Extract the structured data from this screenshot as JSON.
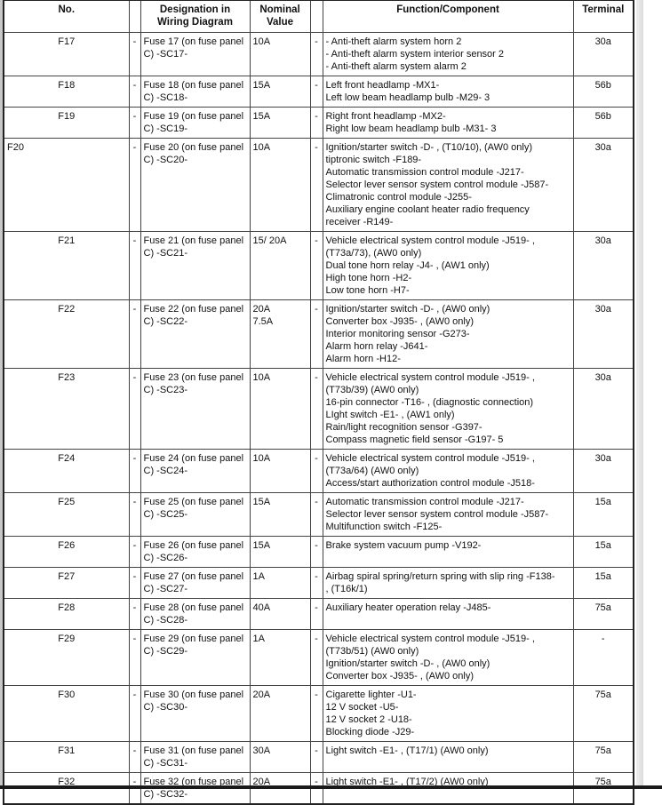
{
  "headers": {
    "no": "No.",
    "designation": "Designation in Wiring Diagram",
    "nominal": "Nominal Value",
    "function": "Function/Component",
    "terminal": "Terminal"
  },
  "dash": "-",
  "rows": [
    {
      "no": "F17",
      "designation": "Fuse 17 (on fuse panel C) -SC17-",
      "nominal": [
        "10A"
      ],
      "function": [
        "- Anti-theft alarm system horn 2",
        "- Anti-theft alarm system interior sensor 2",
        "- Anti-theft alarm system alarm 2"
      ],
      "terminal": "30a"
    },
    {
      "no": "F18",
      "designation": "Fuse 18 (on fuse panel C) -SC18-",
      "nominal": [
        "15A"
      ],
      "function": [
        "Left front headlamp -MX1-",
        "Left low beam headlamp bulb -M29- 3"
      ],
      "terminal": "56b"
    },
    {
      "no": "F19",
      "designation": "Fuse 19 (on fuse panel C) -SC19-",
      "nominal": [
        "15A"
      ],
      "function": [
        "Right front headlamp -MX2-",
        "Right low beam headlamp bulb -M31- 3"
      ],
      "terminal": "56b"
    },
    {
      "no": "F20",
      "no_align": "left",
      "designation": "Fuse 20 (on fuse panel C) -SC20-",
      "nominal": [
        "10A"
      ],
      "function": [
        "Ignition/starter switch -D- , (T10/10), (AW0 only)",
        "tiptronic switch -F189-",
        "Automatic transmission control module -J217-",
        "Selector lever sensor system control module -J587-",
        "Climatronic control module -J255-",
        "Auxiliary engine coolant heater radio frequency",
        "receiver -R149-"
      ],
      "terminal": "30a"
    },
    {
      "no": "F21",
      "designation": "Fuse 21 (on fuse panel C) -SC21-",
      "nominal": [
        "15/ 20A"
      ],
      "function": [
        "Vehicle electrical system control module -J519- ,",
        "(T73a/73), (AW0 only)",
        "Dual tone horn relay -J4- , (AW1 only)",
        "High tone horn -H2-",
        "Low tone horn -H7-"
      ],
      "terminal": "30a"
    },
    {
      "no": "F22",
      "designation": "Fuse 22 (on fuse panel C) -SC22-",
      "nominal": [
        "20A",
        "7.5A"
      ],
      "function": [
        "Ignition/starter switch -D- , (AW0 only)",
        "Converter box -J935- , (AW0 only)",
        "Interior monitoring sensor -G273-",
        "Alarm horn relay -J641-",
        "Alarm horn -H12-"
      ],
      "terminal": "30a"
    },
    {
      "no": "F23",
      "designation": "Fuse 23 (on fuse panel C) -SC23-",
      "nominal": [
        "10A"
      ],
      "function": [
        "Vehicle electrical system control module -J519- ,",
        "(T73b/39) (AW0 only)",
        "16-pin connector -T16- , (diagnostic connection)",
        "LIght switch -E1- , (AW1 only)",
        "Rain/light recognition sensor -G397-",
        "Compass magnetic field sensor -G197- 5"
      ],
      "terminal": "30a"
    },
    {
      "no": "F24",
      "designation": "Fuse 24 (on fuse panel C) -SC24-",
      "nominal": [
        "10A"
      ],
      "function": [
        "Vehicle electrical system control module -J519- ,",
        "(T73a/64) (AW0 only)",
        "Access/start authorization control module -J518-"
      ],
      "terminal": "30a"
    },
    {
      "no": "F25",
      "designation": "Fuse 25 (on fuse panel C) -SC25-",
      "nominal": [
        "15A"
      ],
      "function": [
        "Automatic transmission control module -J217-",
        "Selector lever sensor system control module -J587-",
        "Multifunction switch -F125-"
      ],
      "terminal": "15a"
    },
    {
      "no": "F26",
      "designation": "Fuse 26 (on fuse panel C) -SC26-",
      "nominal": [
        "15A"
      ],
      "function": [
        "Brake system vacuum pump -V192-"
      ],
      "terminal": "15a"
    },
    {
      "no": "F27",
      "designation": "Fuse 27 (on fuse panel C) -SC27-",
      "nominal": [
        "1A"
      ],
      "function": [
        "Airbag spiral spring/return spring with slip ring -F138-",
        ", (T16k/1)"
      ],
      "terminal": "15a"
    },
    {
      "no": "F28",
      "designation": "Fuse 28 (on fuse panel C) -SC28-",
      "nominal": [
        "40A"
      ],
      "function": [
        "Auxiliary heater operation relay -J485-"
      ],
      "terminal": "75a"
    },
    {
      "no": "F29",
      "designation": "Fuse 29 (on fuse panel C) -SC29-",
      "nominal": [
        "1A"
      ],
      "function": [
        "Vehicle electrical system control module -J519- ,",
        "(T73b/51) (AW0 only)",
        "Ignition/starter switch -D- , (AW0 only)",
        "Converter box -J935- , (AW0 only)"
      ],
      "terminal": "-"
    },
    {
      "no": "F30",
      "designation": "Fuse 30 (on fuse panel C) -SC30-",
      "nominal": [
        "20A"
      ],
      "function": [
        "Cigarette lighter -U1-",
        "12 V socket -U5-",
        "12 V socket 2 -U18-",
        "Blocking diode -J29-"
      ],
      "terminal": "75a"
    },
    {
      "no": "F31",
      "designation": "Fuse 31 (on fuse panel C) -SC31-",
      "nominal": [
        "30A"
      ],
      "function": [
        "Light switch -E1- , (T17/1) (AW0 only)"
      ],
      "terminal": "75a"
    },
    {
      "no": "F32",
      "designation": "Fuse 32 (on fuse panel C) -SC32-",
      "nominal": [
        "20A"
      ],
      "function": [
        "Light switch -E1- , (T17/2) (AW0 only)"
      ],
      "terminal": "75a"
    }
  ]
}
